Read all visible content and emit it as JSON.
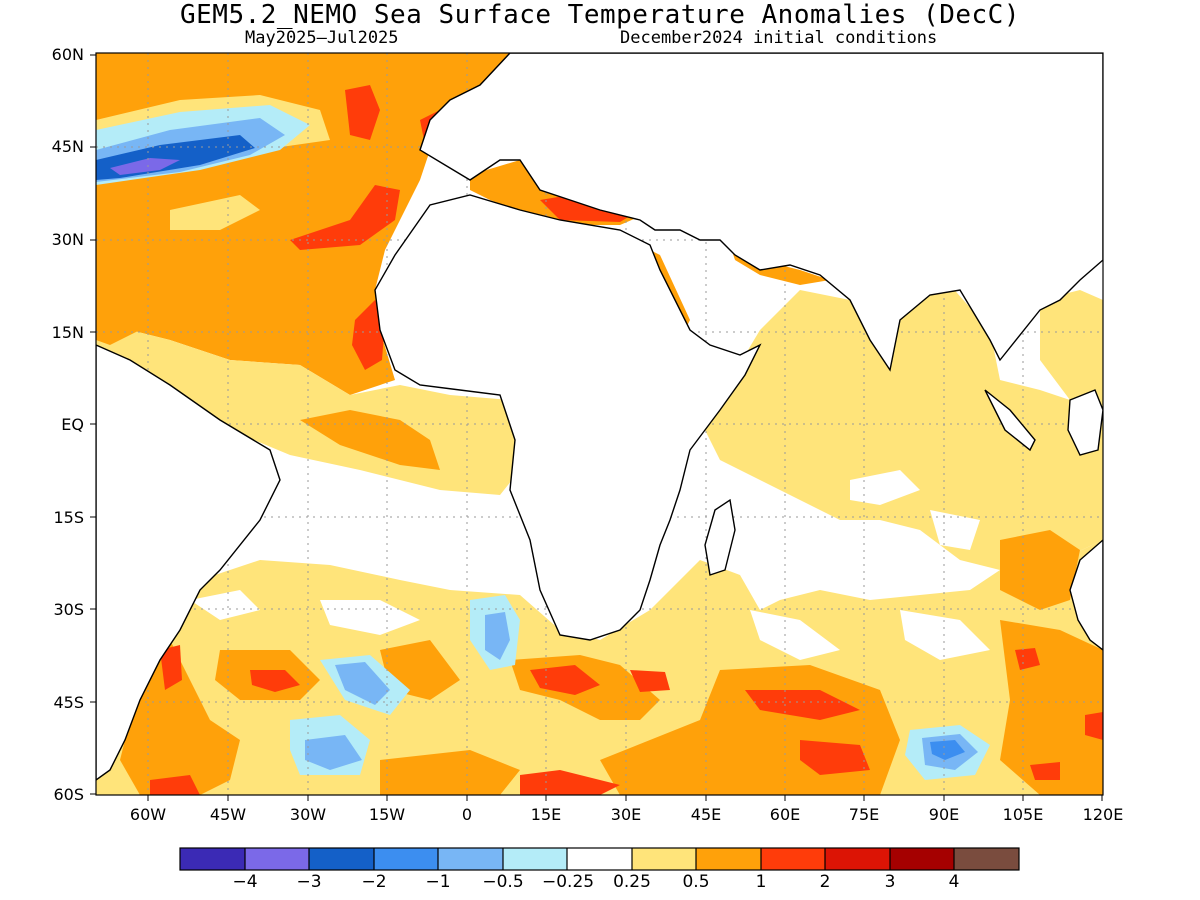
{
  "title": "GEM5.2_NEMO Sea Surface Temperature Anomalies (DecC)",
  "subtitle_left": "May2025–Jul2025",
  "subtitle_right": "December2024 initial conditions",
  "lat_labels": [
    "60N",
    "45N",
    "30N",
    "15N",
    "EQ",
    "15S",
    "30S",
    "45S",
    "60S"
  ],
  "lon_labels": [
    "60W",
    "45W",
    "30W",
    "15W",
    "0",
    "15E",
    "30E",
    "45E",
    "60E",
    "75E",
    "90E",
    "105E",
    "120E"
  ],
  "colorbar": {
    "colors": [
      "#3b2ab5",
      "#7b69e8",
      "#1460c8",
      "#3c8ef0",
      "#78b6f5",
      "#b4ecf8",
      "#ffffff",
      "#ffe47a",
      "#ffa10a",
      "#ff3c0a",
      "#dc1405",
      "#a50000",
      "#7a4c3e"
    ],
    "labels": [
      "−4",
      "−3",
      "−2",
      "−1",
      "−0.5",
      "−0.25",
      "0.25",
      "0.5",
      "1",
      "2",
      "3",
      "4"
    ]
  }
}
